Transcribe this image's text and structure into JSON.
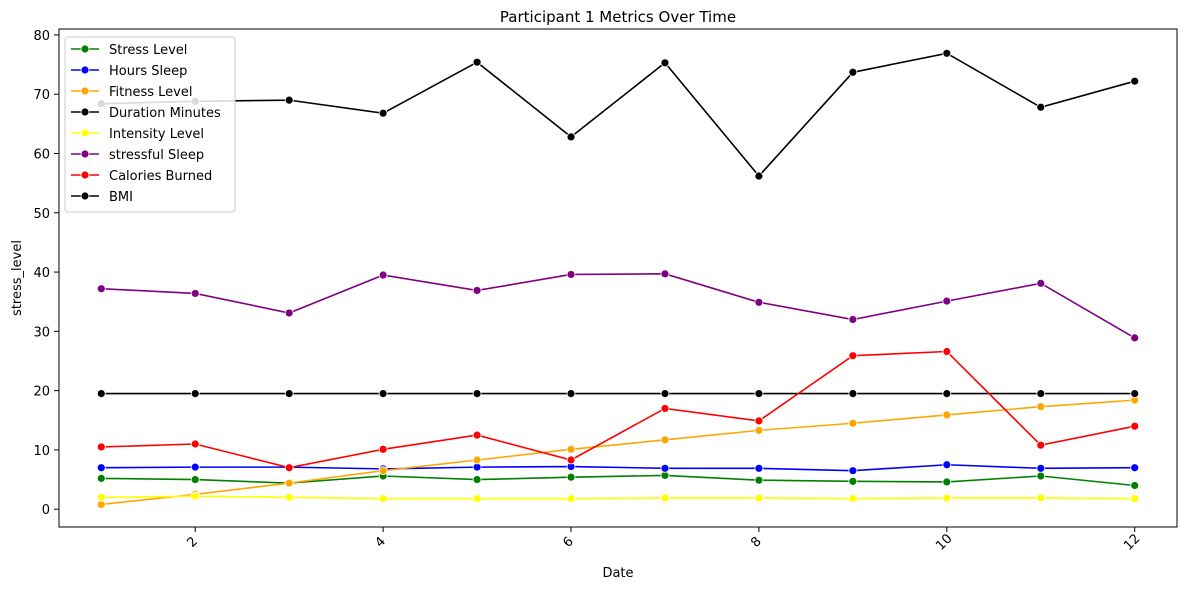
{
  "chart_data": {
    "type": "line",
    "title": "Participant 1 Metrics Over Time",
    "xlabel": "Date",
    "ylabel": "stress_level",
    "x": [
      1,
      2,
      3,
      4,
      5,
      6,
      7,
      8,
      9,
      10,
      11,
      12
    ],
    "xlim": [
      0.55,
      12.45
    ],
    "ylim": [
      -3,
      81
    ],
    "xticks": [
      2,
      4,
      6,
      8,
      10,
      12
    ],
    "yticks": [
      0,
      10,
      20,
      30,
      40,
      50,
      60,
      70,
      80
    ],
    "grid": false,
    "legend_position": "top-left",
    "series": [
      {
        "name": "Stress Level",
        "color": "#008000",
        "values": [
          5.2,
          5.0,
          4.4,
          5.6,
          5.0,
          5.4,
          5.7,
          4.9,
          4.7,
          4.6,
          5.6,
          4.0
        ]
      },
      {
        "name": "Hours Sleep",
        "color": "#0000ff",
        "values": [
          7.0,
          7.1,
          7.1,
          6.8,
          7.1,
          7.2,
          6.9,
          6.9,
          6.5,
          7.5,
          6.9,
          7.0
        ]
      },
      {
        "name": "Fitness Level",
        "color": "#ffa500",
        "values": [
          0.8,
          2.5,
          4.4,
          6.5,
          8.3,
          10.1,
          11.7,
          13.3,
          14.5,
          15.9,
          17.3,
          18.4
        ]
      },
      {
        "name": "Duration Minutes",
        "color": "#000000",
        "values": [
          19.5,
          19.5,
          19.5,
          19.5,
          19.5,
          19.5,
          19.5,
          19.5,
          19.5,
          19.5,
          19.5,
          19.5
        ]
      },
      {
        "name": "Intensity Level",
        "color": "#ffff00",
        "values": [
          2.0,
          2.2,
          2.0,
          1.8,
          1.8,
          1.8,
          1.9,
          1.9,
          1.8,
          1.9,
          1.9,
          1.8
        ]
      },
      {
        "name": "stressful Sleep",
        "color": "#800080",
        "values": [
          37.2,
          36.4,
          33.1,
          39.5,
          36.9,
          39.6,
          39.7,
          34.9,
          32.0,
          35.1,
          38.1,
          28.9
        ]
      },
      {
        "name": "Calories Burned",
        "color": "#ff0000",
        "values": [
          10.5,
          11.0,
          7.0,
          10.1,
          12.5,
          8.3,
          17.0,
          14.9,
          25.9,
          26.6,
          10.8,
          14.0
        ]
      },
      {
        "name": "BMI",
        "color": "#000000",
        "values": [
          68.4,
          68.8,
          69.0,
          66.8,
          75.4,
          62.8,
          75.3,
          56.2,
          73.7,
          76.9,
          67.8,
          72.2
        ]
      }
    ]
  }
}
